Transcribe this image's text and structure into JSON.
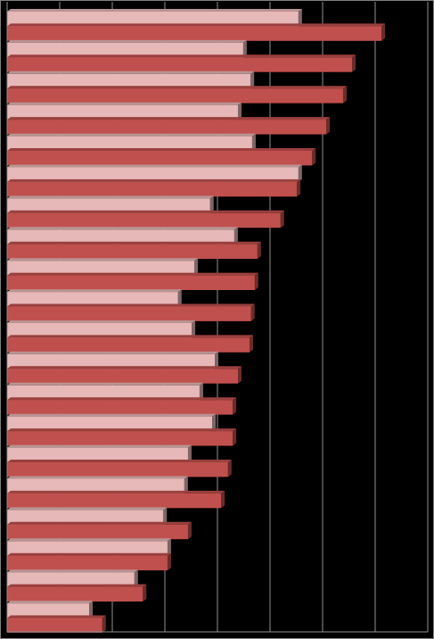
{
  "chart_data": {
    "type": "bar",
    "orientation": "horizontal",
    "categories": [
      null,
      null,
      null,
      null,
      null,
      null,
      null,
      null,
      null,
      null,
      null,
      null,
      null,
      null,
      null,
      null,
      null,
      null,
      null,
      null
    ],
    "series": [
      {
        "color": "#e6b8b7",
        "values": [
          5.54,
          4.49,
          4.63,
          4.39,
          4.66,
          5.54,
          3.86,
          4.32,
          3.56,
          3.25,
          3.51,
          3.95,
          3.66,
          3.9,
          3.44,
          3.37,
          2.97,
          3.05,
          2.42,
          1.56
        ]
      },
      {
        "color": "#c0504d",
        "values": [
          7.12,
          6.56,
          6.39,
          6.07,
          5.8,
          5.51,
          5.2,
          4.76,
          4.71,
          4.64,
          4.61,
          4.39,
          4.29,
          4.29,
          4.2,
          4.07,
          3.44,
          3.05,
          2.58,
          1.81
        ]
      }
    ],
    "xlim": [
      0,
      8
    ],
    "xticks": [
      0,
      1,
      2,
      3,
      4,
      5,
      6,
      7,
      8
    ],
    "grid": true,
    "background": "#000000"
  }
}
